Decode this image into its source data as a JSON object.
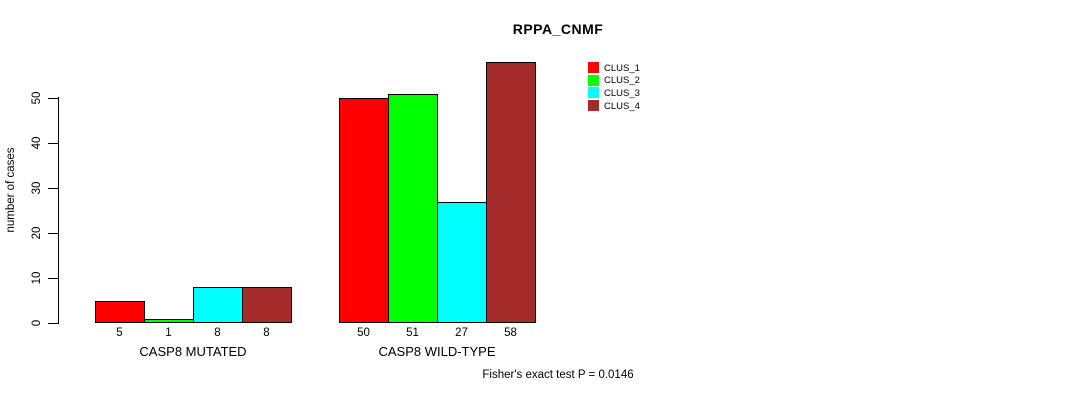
{
  "chart_data": {
    "type": "bar",
    "title": "RPPA_CNMF",
    "ylabel": "number of cases",
    "xlabel": "",
    "ylim": [
      0,
      58
    ],
    "yticks": [
      0,
      10,
      20,
      30,
      40,
      50
    ],
    "grid": false,
    "legend_position": "top-right",
    "bar_value_labels": true,
    "groups": [
      {
        "label": "CASP8 MUTATED",
        "values": [
          5,
          1,
          8,
          8
        ]
      },
      {
        "label": "CASP8 WILD-TYPE",
        "values": [
          50,
          51,
          27,
          58
        ]
      }
    ],
    "series": [
      {
        "name": "CLUS_1",
        "color": "#FF0000"
      },
      {
        "name": "CLUS_2",
        "color": "#00FF00"
      },
      {
        "name": "CLUS_3",
        "color": "#00FFFF"
      },
      {
        "name": "CLUS_4",
        "color": "#A52A2A"
      }
    ],
    "annotation": "Fisher's exact test P = 0.0146"
  },
  "colors": {
    "background": "#FFFFFF",
    "axis": "#000000",
    "text": "#000000"
  }
}
